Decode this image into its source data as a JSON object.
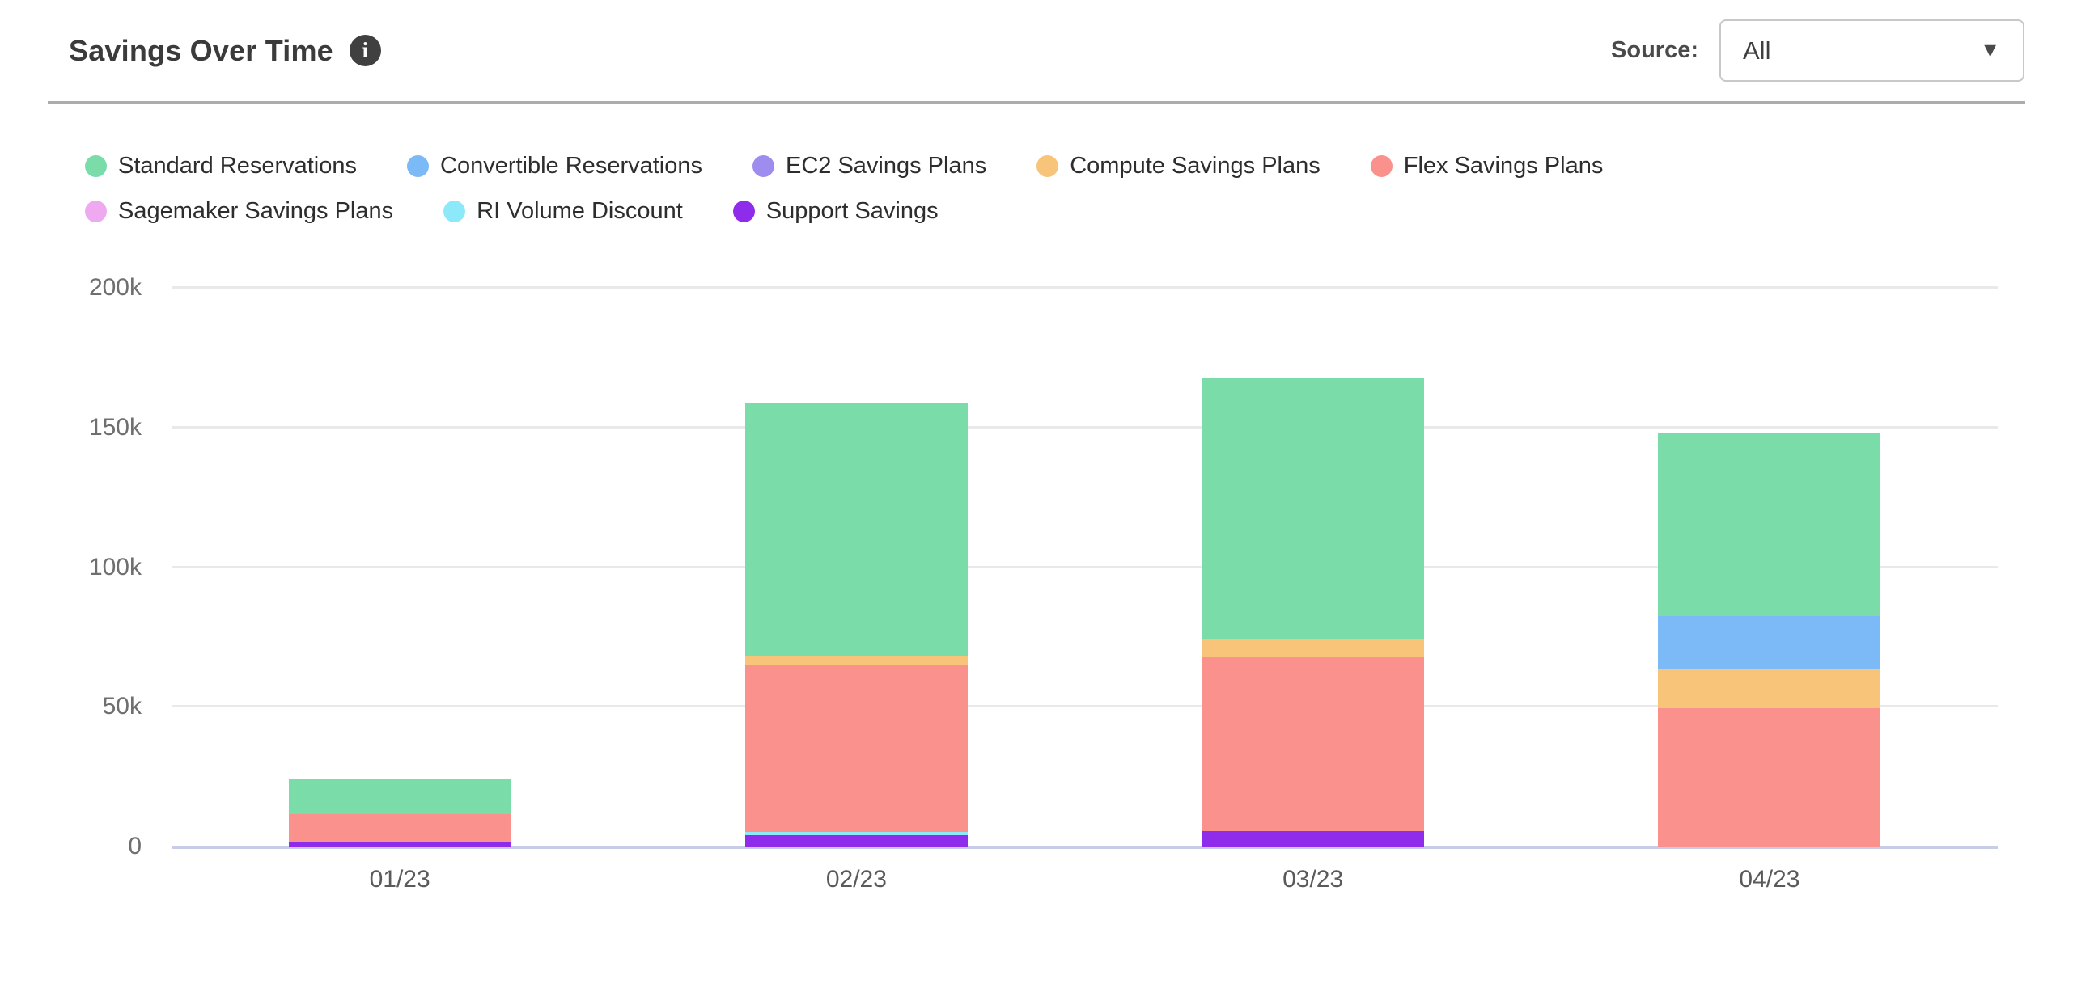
{
  "header": {
    "title": "Savings Over Time",
    "source_label": "Source:",
    "source_value": "All"
  },
  "icons": {
    "info": "i",
    "chevron_down": "▼"
  },
  "colors": {
    "accent_divider": "#acacac",
    "gridline": "#e9e9e9",
    "baseline": "#c7cce8",
    "title_text": "#3b3b3b",
    "tick_text": "#6f6f6f"
  },
  "chart_data": {
    "type": "bar",
    "stacked": true,
    "title": "Savings Over Time",
    "grid": true,
    "legend_position": "top-left",
    "xlabel": "",
    "ylabel": "",
    "ylim": [
      0,
      200000
    ],
    "yticks": [
      {
        "label": "0",
        "value": 0
      },
      {
        "label": "50k",
        "value": 50000
      },
      {
        "label": "100k",
        "value": 100000
      },
      {
        "label": "150k",
        "value": 150000
      },
      {
        "label": "200k",
        "value": 200000
      }
    ],
    "categories": [
      "01/23",
      "02/23",
      "03/23",
      "04/23"
    ],
    "stack_order_note": "stacked bottom-to-top in reverse of series order (Support Savings at bottom, Standard Reservations on top)",
    "series": [
      {
        "name": "Standard Reservations",
        "color": "#79dca9",
        "values": [
          12500,
          90500,
          93500,
          65500
        ]
      },
      {
        "name": "Convertible Reservations",
        "color": "#7cb9f7",
        "values": [
          0,
          0,
          0,
          19000
        ]
      },
      {
        "name": "EC2 Savings Plans",
        "color": "#9e8dee",
        "values": [
          0,
          0,
          0,
          0
        ]
      },
      {
        "name": "Compute Savings Plans",
        "color": "#f8c47a",
        "values": [
          0,
          3000,
          6500,
          14000
        ]
      },
      {
        "name": "Flex Savings Plans",
        "color": "#fb918c",
        "values": [
          10000,
          60000,
          62500,
          49500
        ]
      },
      {
        "name": "Sagemaker Savings Plans",
        "color": "#efa9f0",
        "values": [
          0,
          0,
          0,
          0
        ]
      },
      {
        "name": "RI Volume Discount",
        "color": "#8ce9fa",
        "values": [
          0,
          1200,
          0,
          0
        ]
      },
      {
        "name": "Support Savings",
        "color": "#8f2beb",
        "values": [
          1500,
          4000,
          5500,
          0
        ]
      }
    ]
  }
}
